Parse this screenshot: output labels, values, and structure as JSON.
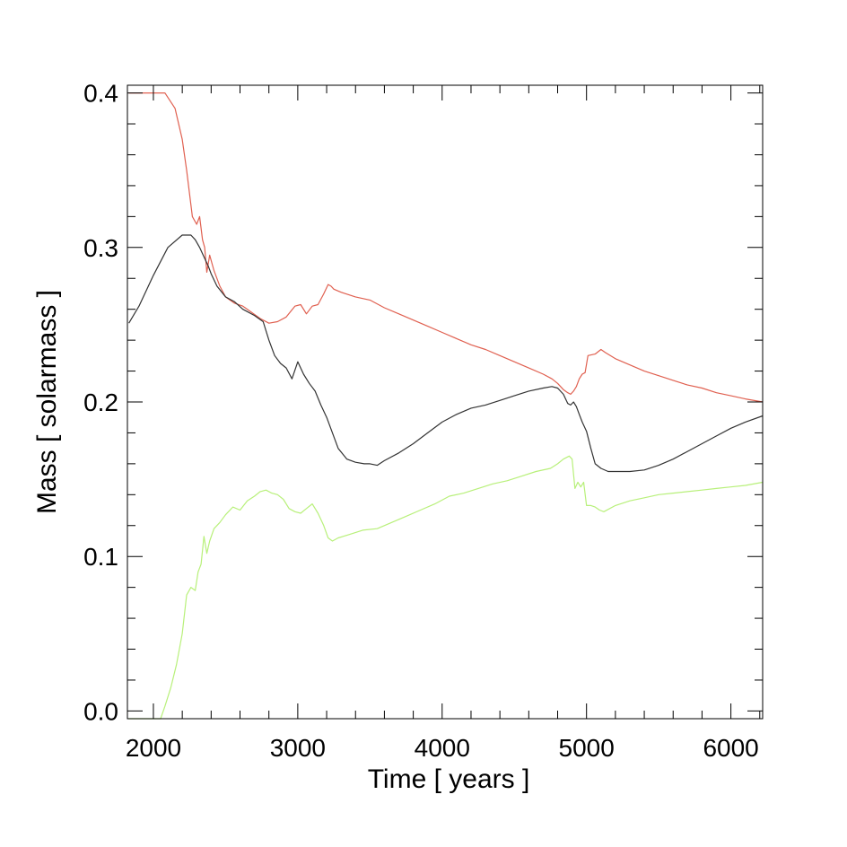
{
  "chart_data": {
    "type": "line",
    "title": "",
    "xlabel": "Time [ years ]",
    "ylabel": "Mass [ solarmass ]",
    "xlim": [
      1820,
      6220
    ],
    "ylim": [
      -0.005,
      0.405
    ],
    "x_ticks": [
      2000,
      3000,
      4000,
      5000,
      6000
    ],
    "x_tick_labels": [
      "2000",
      "3000",
      "4000",
      "5000",
      "6000"
    ],
    "y_ticks": [
      0.0,
      0.1,
      0.2,
      0.3,
      0.4
    ],
    "y_tick_labels": [
      "0.0",
      "0.1",
      "0.2",
      "0.3",
      "0.4"
    ],
    "grid": false,
    "legend": "none",
    "series": [
      {
        "color": "#e06050",
        "x": [
          1830,
          2000,
          2080,
          2150,
          2200,
          2230,
          2270,
          2300,
          2320,
          2340,
          2355,
          2370,
          2390,
          2420,
          2460,
          2500,
          2560,
          2620,
          2680,
          2740,
          2800,
          2860,
          2920,
          2980,
          3020,
          3060,
          3100,
          3140,
          3180,
          3210,
          3230,
          3250,
          3300,
          3400,
          3500,
          3600,
          3700,
          3800,
          3900,
          4000,
          4100,
          4200,
          4300,
          4400,
          4500,
          4600,
          4700,
          4760,
          4800,
          4840,
          4870,
          4890,
          4910,
          4930,
          4950,
          4970,
          4990,
          5010,
          5060,
          5100,
          5130,
          5200,
          5300,
          5400,
          5500,
          5600,
          5700,
          5800,
          5900,
          6000,
          6100,
          6220
        ],
        "y": [
          0.4,
          0.4,
          0.4,
          0.39,
          0.37,
          0.35,
          0.32,
          0.315,
          0.32,
          0.305,
          0.3,
          0.284,
          0.295,
          0.285,
          0.275,
          0.268,
          0.264,
          0.262,
          0.258,
          0.254,
          0.251,
          0.252,
          0.255,
          0.262,
          0.263,
          0.257,
          0.262,
          0.263,
          0.27,
          0.276,
          0.275,
          0.273,
          0.271,
          0.268,
          0.266,
          0.261,
          0.257,
          0.253,
          0.249,
          0.245,
          0.241,
          0.237,
          0.234,
          0.23,
          0.226,
          0.222,
          0.218,
          0.215,
          0.212,
          0.208,
          0.206,
          0.205,
          0.207,
          0.21,
          0.215,
          0.218,
          0.219,
          0.23,
          0.231,
          0.234,
          0.232,
          0.228,
          0.224,
          0.22,
          0.217,
          0.214,
          0.211,
          0.209,
          0.206,
          0.204,
          0.202,
          0.2
        ]
      },
      {
        "color": "#333333",
        "x": [
          1830,
          1900,
          2000,
          2100,
          2200,
          2260,
          2290,
          2320,
          2340,
          2360,
          2380,
          2400,
          2440,
          2500,
          2560,
          2620,
          2700,
          2760,
          2800,
          2840,
          2880,
          2920,
          2960,
          3000,
          3040,
          3080,
          3120,
          3160,
          3200,
          3240,
          3280,
          3340,
          3400,
          3460,
          3500,
          3550,
          3600,
          3700,
          3800,
          3900,
          4000,
          4100,
          4200,
          4300,
          4400,
          4500,
          4600,
          4700,
          4760,
          4800,
          4840,
          4870,
          4890,
          4910,
          4930,
          4950,
          4970,
          5000,
          5030,
          5060,
          5100,
          5150,
          5200,
          5300,
          5400,
          5500,
          5600,
          5700,
          5800,
          5900,
          6000,
          6100,
          6220
        ],
        "y": [
          0.251,
          0.262,
          0.282,
          0.3,
          0.308,
          0.308,
          0.305,
          0.3,
          0.296,
          0.292,
          0.288,
          0.283,
          0.275,
          0.268,
          0.265,
          0.26,
          0.256,
          0.252,
          0.24,
          0.23,
          0.225,
          0.222,
          0.215,
          0.226,
          0.218,
          0.212,
          0.207,
          0.198,
          0.19,
          0.18,
          0.17,
          0.163,
          0.161,
          0.16,
          0.16,
          0.159,
          0.162,
          0.167,
          0.173,
          0.18,
          0.187,
          0.192,
          0.196,
          0.198,
          0.201,
          0.204,
          0.207,
          0.209,
          0.21,
          0.209,
          0.205,
          0.199,
          0.198,
          0.2,
          0.197,
          0.192,
          0.187,
          0.181,
          0.17,
          0.16,
          0.157,
          0.155,
          0.155,
          0.155,
          0.156,
          0.159,
          0.163,
          0.168,
          0.173,
          0.178,
          0.183,
          0.187,
          0.191
        ]
      },
      {
        "color": "#b8f07a",
        "x": [
          1830,
          1950,
          2050,
          2080,
          2120,
          2160,
          2200,
          2230,
          2260,
          2290,
          2310,
          2330,
          2350,
          2370,
          2390,
          2420,
          2460,
          2500,
          2550,
          2600,
          2650,
          2700,
          2740,
          2780,
          2820,
          2860,
          2900,
          2940,
          2980,
          3020,
          3060,
          3100,
          3140,
          3180,
          3210,
          3240,
          3280,
          3350,
          3450,
          3550,
          3650,
          3750,
          3850,
          3950,
          4050,
          4150,
          4250,
          4350,
          4450,
          4550,
          4650,
          4750,
          4800,
          4840,
          4880,
          4900,
          4920,
          4940,
          4960,
          4980,
          5000,
          5030,
          5060,
          5090,
          5120,
          5200,
          5300,
          5400,
          5500,
          5600,
          5700,
          5800,
          5900,
          6000,
          6100,
          6220
        ],
        "y": [
          -0.005,
          -0.005,
          -0.005,
          0.003,
          0.015,
          0.03,
          0.05,
          0.075,
          0.08,
          0.078,
          0.09,
          0.095,
          0.113,
          0.102,
          0.11,
          0.118,
          0.122,
          0.127,
          0.132,
          0.13,
          0.136,
          0.139,
          0.142,
          0.143,
          0.141,
          0.14,
          0.137,
          0.131,
          0.129,
          0.128,
          0.131,
          0.134,
          0.128,
          0.12,
          0.112,
          0.11,
          0.112,
          0.114,
          0.117,
          0.118,
          0.122,
          0.126,
          0.13,
          0.134,
          0.139,
          0.141,
          0.144,
          0.147,
          0.149,
          0.152,
          0.155,
          0.157,
          0.16,
          0.163,
          0.165,
          0.163,
          0.144,
          0.148,
          0.145,
          0.148,
          0.133,
          0.133,
          0.132,
          0.13,
          0.129,
          0.133,
          0.136,
          0.138,
          0.14,
          0.141,
          0.142,
          0.143,
          0.144,
          0.145,
          0.146,
          0.148
        ]
      }
    ]
  }
}
